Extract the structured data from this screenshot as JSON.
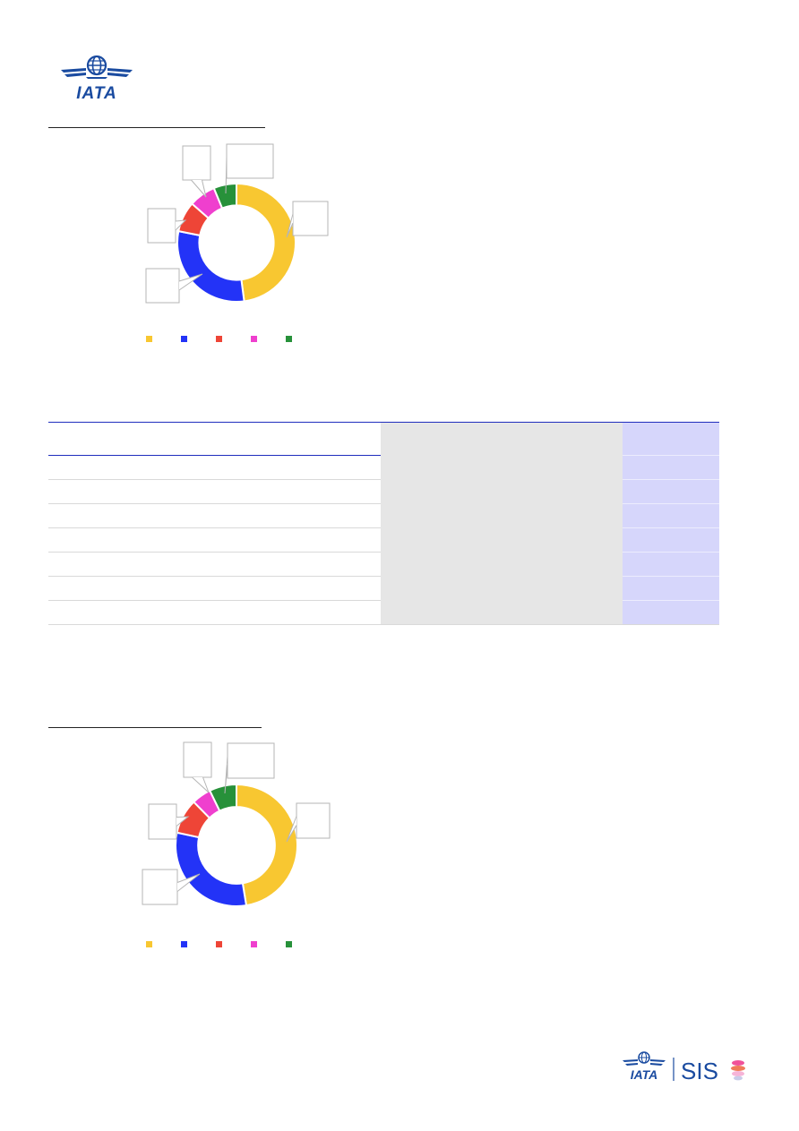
{
  "header": {
    "logo_text": "IATA"
  },
  "footer": {
    "logo_text": "IATA",
    "product": "SIS"
  },
  "colors": {
    "yellow": "#f8c731",
    "blue": "#2333f7",
    "red": "#ee4537",
    "pink": "#ef3fce",
    "green": "#27913a",
    "brand_blue": "#1a4ba0"
  },
  "charts": [
    {
      "chart_data": {
        "type": "pie",
        "hole": 0.63,
        "values": [
          46,
          29,
          8,
          7,
          6
        ],
        "colors": [
          "#f8c731",
          "#2333f7",
          "#ee4537",
          "#ef3fce",
          "#27913a"
        ],
        "labels": [
          "",
          "",
          "",
          "",
          ""
        ],
        "legend": "bottom"
      }
    },
    {
      "chart_data": {
        "type": "pie",
        "hole": 0.63,
        "values": [
          46,
          30,
          9,
          5,
          7
        ],
        "colors": [
          "#f8c731",
          "#2333f7",
          "#ee4537",
          "#ef3fce",
          "#27913a"
        ],
        "labels": [
          "",
          "",
          "",
          "",
          ""
        ],
        "legend": "bottom"
      }
    }
  ],
  "table": {
    "headers": [
      "",
      "",
      ""
    ],
    "rows": [
      [
        "",
        "",
        ""
      ],
      [
        "",
        "",
        ""
      ],
      [
        "",
        "",
        ""
      ],
      [
        "",
        "",
        ""
      ],
      [
        "",
        "",
        ""
      ],
      [
        "",
        "",
        ""
      ],
      [
        "",
        "",
        ""
      ]
    ]
  }
}
